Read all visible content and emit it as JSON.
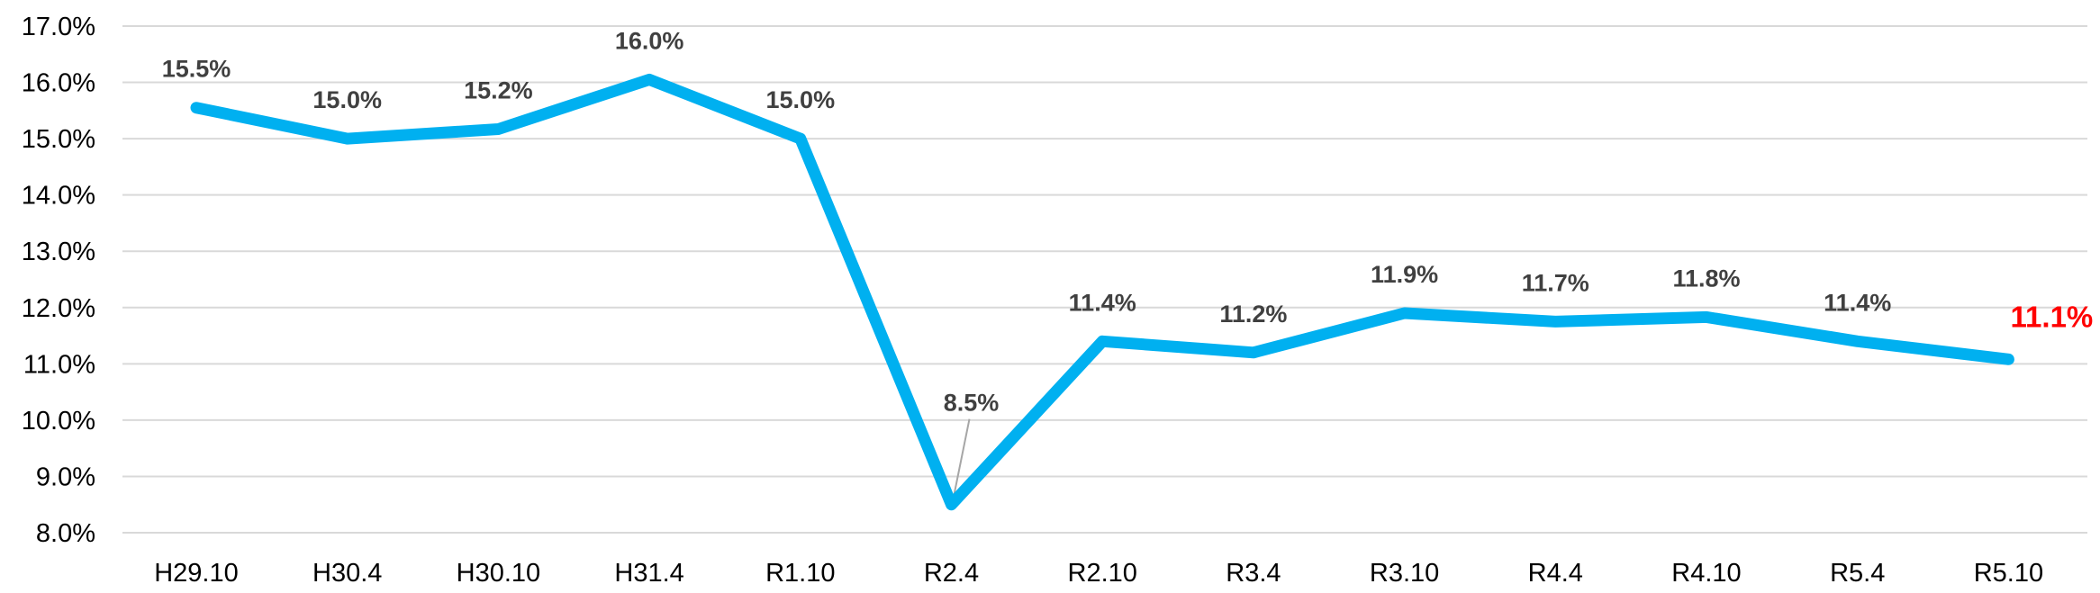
{
  "chart_data": {
    "type": "line",
    "title": "",
    "xlabel": "",
    "ylabel": "",
    "categories": [
      "H29.10",
      "H30.4",
      "H30.10",
      "H31.4",
      "R1.10",
      "R2.4",
      "R2.10",
      "R3.4",
      "R3.10",
      "R4.4",
      "R4.10",
      "R5.4",
      "R5.10"
    ],
    "series": [
      {
        "values": [
          15.55,
          15.0,
          15.17,
          16.05,
          15.0,
          8.5,
          11.4,
          11.2,
          11.9,
          11.75,
          11.83,
          11.4,
          11.08
        ],
        "data_labels": [
          "15.5%",
          "15.0%",
          "15.2%",
          "16.0%",
          "15.0%",
          "8.5%",
          "11.4%",
          "11.2%",
          "11.9%",
          "11.7%",
          "11.8%",
          "11.4%",
          "11.1%"
        ],
        "highlight_index": 12
      }
    ],
    "ylim": [
      8.0,
      17.0
    ],
    "yticks": [
      8.0,
      9.0,
      10.0,
      11.0,
      12.0,
      13.0,
      14.0,
      15.0,
      16.0,
      17.0
    ],
    "ytick_labels": [
      "8.0%",
      "9.0%",
      "10.0%",
      "11.0%",
      "12.0%",
      "13.0%",
      "14.0%",
      "15.0%",
      "16.0%",
      "17.0%"
    ],
    "grid": true,
    "legend": "none",
    "colors": {
      "line": "#00b0f0",
      "grid": "#d9d9d9",
      "label": "#404040",
      "highlight": "#ff0000",
      "leader": "#a6a6a6"
    }
  }
}
